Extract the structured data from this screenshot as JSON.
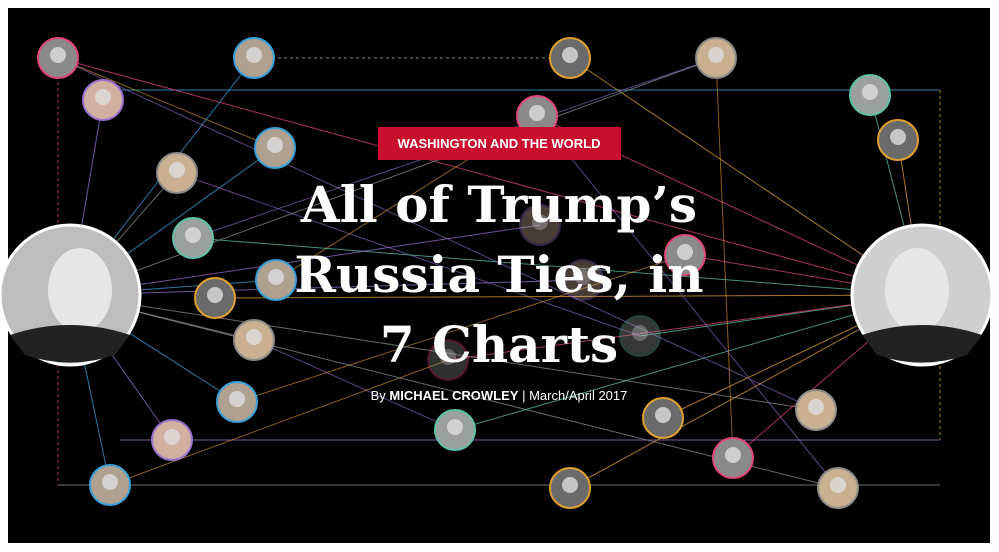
{
  "header": {
    "section": "WASHINGTON AND THE WORLD",
    "title_lines": [
      "All of Trump’s",
      "Russia Ties, in",
      "7 Charts"
    ],
    "byline": {
      "prefix": "By",
      "author": "MICHAEL CROWLEY",
      "separator": "|",
      "date": "March/April 2017"
    }
  }
}
